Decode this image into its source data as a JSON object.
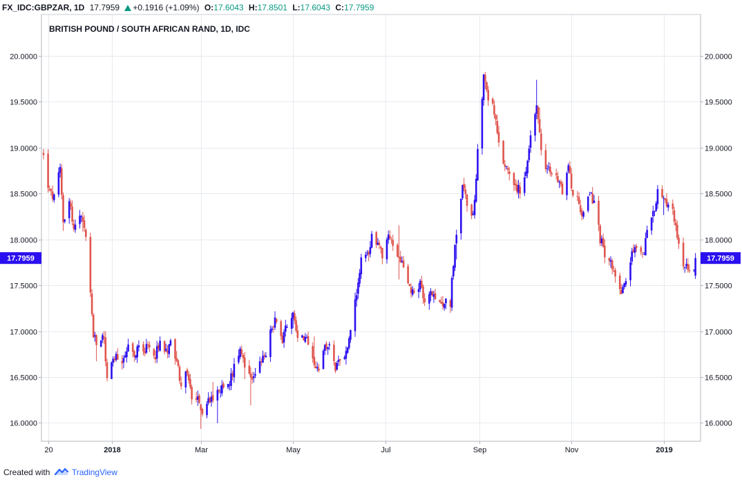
{
  "header": {
    "symbol": "FX_IDC:GBPZAR, 1D",
    "last": "17.7959",
    "change": "+0.1916 (+1.09%)",
    "open_label": "O:",
    "open": "17.6043",
    "high_label": "H:",
    "high": "17.8501",
    "low_label": "L:",
    "low": "17.6043",
    "close_label": "C:",
    "close": "17.7959",
    "change_direction": "up"
  },
  "footer": {
    "created_with": "Created with",
    "brand": "TradingView"
  },
  "chart_data": {
    "type": "candlestick",
    "title": "BRITISH POUND / SOUTH AFRICAN RAND, 1D, IDC",
    "ylim": [
      15.8,
      20.45
    ],
    "y_ticks": [
      "20.0000",
      "19.5000",
      "19.0000",
      "18.5000",
      "18.0000",
      "17.5000",
      "17.0000",
      "16.5000",
      "16.0000"
    ],
    "y_tick_values": [
      20.0,
      19.5,
      19.0,
      18.5,
      18.0,
      17.5,
      17.0,
      16.5,
      16.0
    ],
    "x_ticks": [
      "20",
      "2018",
      "Mar",
      "May",
      "Jul",
      "Sep",
      "Nov",
      "2019"
    ],
    "x_tick_dates": [
      "2017-11-20",
      "2018-01-01",
      "2018-03-01",
      "2018-05-01",
      "2018-07-01",
      "2018-09-01",
      "2018-11-01",
      "2019-01-01"
    ],
    "x_range": [
      "2017-11-17",
      "2019-01-24"
    ],
    "bold_ticks": [
      "2018",
      "2019"
    ],
    "last_price": "17.7959",
    "last_price_value": 17.7959,
    "up_color": "#2b10f0",
    "down_color": "#e0554e",
    "grid": true,
    "anchors": [
      [
        "2017-11-17",
        18.9
      ],
      [
        "2017-11-21",
        18.5
      ],
      [
        "2017-11-24",
        18.45
      ],
      [
        "2017-11-28",
        18.75
      ],
      [
        "2017-11-30",
        18.2
      ],
      [
        "2017-12-04",
        18.45
      ],
      [
        "2017-12-07",
        18.1
      ],
      [
        "2017-12-11",
        18.25
      ],
      [
        "2017-12-15",
        18.05
      ],
      [
        "2017-12-18",
        17.4
      ],
      [
        "2017-12-20",
        16.95
      ],
      [
        "2017-12-22",
        16.85
      ],
      [
        "2017-12-27",
        16.95
      ],
      [
        "2017-12-29",
        16.45
      ],
      [
        "2018-01-02",
        16.7
      ],
      [
        "2018-01-05",
        16.7
      ],
      [
        "2018-01-09",
        16.65
      ],
      [
        "2018-01-12",
        16.8
      ],
      [
        "2018-01-16",
        16.7
      ],
      [
        "2018-01-19",
        16.9
      ],
      [
        "2018-01-23",
        16.8
      ],
      [
        "2018-01-26",
        16.8
      ],
      [
        "2018-01-30",
        16.75
      ],
      [
        "2018-02-02",
        16.9
      ],
      [
        "2018-02-06",
        16.75
      ],
      [
        "2018-02-09",
        16.95
      ],
      [
        "2018-02-13",
        16.65
      ],
      [
        "2018-02-16",
        16.45
      ],
      [
        "2018-02-20",
        16.55
      ],
      [
        "2018-02-23",
        16.3
      ],
      [
        "2018-02-27",
        16.25
      ],
      [
        "2018-03-02",
        16.12
      ],
      [
        "2018-03-06",
        16.25
      ],
      [
        "2018-03-09",
        16.3
      ],
      [
        "2018-03-13",
        16.4
      ],
      [
        "2018-03-16",
        16.35
      ],
      [
        "2018-03-20",
        16.45
      ],
      [
        "2018-03-23",
        16.6
      ],
      [
        "2018-03-27",
        16.85
      ],
      [
        "2018-03-30",
        16.65
      ],
      [
        "2018-04-03",
        16.5
      ],
      [
        "2018-04-06",
        16.55
      ],
      [
        "2018-04-10",
        16.65
      ],
      [
        "2018-04-13",
        16.75
      ],
      [
        "2018-04-17",
        17.05
      ],
      [
        "2018-04-20",
        17.15
      ],
      [
        "2018-04-24",
        16.9
      ],
      [
        "2018-04-27",
        17.1
      ],
      [
        "2018-05-01",
        17.2
      ],
      [
        "2018-05-04",
        16.95
      ],
      [
        "2018-05-08",
        16.95
      ],
      [
        "2018-05-11",
        16.85
      ],
      [
        "2018-05-15",
        16.6
      ],
      [
        "2018-05-18",
        16.6
      ],
      [
        "2018-05-22",
        16.8
      ],
      [
        "2018-05-25",
        16.85
      ],
      [
        "2018-05-29",
        16.6
      ],
      [
        "2018-06-01",
        16.65
      ],
      [
        "2018-06-05",
        16.75
      ],
      [
        "2018-06-08",
        17.0
      ],
      [
        "2018-06-12",
        17.4
      ],
      [
        "2018-06-15",
        17.75
      ],
      [
        "2018-06-19",
        17.8
      ],
      [
        "2018-06-22",
        18.05
      ],
      [
        "2018-06-26",
        17.95
      ],
      [
        "2018-06-29",
        17.85
      ],
      [
        "2018-07-03",
        18.05
      ],
      [
        "2018-07-06",
        17.95
      ],
      [
        "2018-07-10",
        17.75
      ],
      [
        "2018-07-13",
        17.7
      ],
      [
        "2018-07-17",
        17.5
      ],
      [
        "2018-07-20",
        17.4
      ],
      [
        "2018-07-24",
        17.5
      ],
      [
        "2018-07-27",
        17.3
      ],
      [
        "2018-07-31",
        17.45
      ],
      [
        "2018-08-03",
        17.3
      ],
      [
        "2018-08-07",
        17.25
      ],
      [
        "2018-08-10",
        17.4
      ],
      [
        "2018-08-13",
        17.25
      ],
      [
        "2018-08-14",
        17.55
      ],
      [
        "2018-08-17",
        18.1
      ],
      [
        "2018-08-21",
        18.6
      ],
      [
        "2018-08-24",
        18.4
      ],
      [
        "2018-08-28",
        18.25
      ],
      [
        "2018-08-31",
        18.95
      ],
      [
        "2018-09-04",
        19.8
      ],
      [
        "2018-09-07",
        19.55
      ],
      [
        "2018-09-11",
        19.4
      ],
      [
        "2018-09-14",
        19.0
      ],
      [
        "2018-09-18",
        18.8
      ],
      [
        "2018-09-21",
        18.75
      ],
      [
        "2018-09-25",
        18.6
      ],
      [
        "2018-09-28",
        18.5
      ],
      [
        "2018-10-02",
        18.7
      ],
      [
        "2018-10-05",
        19.1
      ],
      [
        "2018-10-09",
        19.4
      ],
      [
        "2018-10-12",
        19.0
      ],
      [
        "2018-10-16",
        18.75
      ],
      [
        "2018-10-19",
        18.7
      ],
      [
        "2018-10-23",
        18.65
      ],
      [
        "2018-10-26",
        18.55
      ],
      [
        "2018-10-30",
        18.8
      ],
      [
        "2018-11-02",
        18.5
      ],
      [
        "2018-11-06",
        18.4
      ],
      [
        "2018-11-09",
        18.25
      ],
      [
        "2018-11-13",
        18.5
      ],
      [
        "2018-11-16",
        18.4
      ],
      [
        "2018-11-20",
        18.0
      ],
      [
        "2018-11-23",
        17.85
      ],
      [
        "2018-11-27",
        17.75
      ],
      [
        "2018-11-30",
        17.65
      ],
      [
        "2018-12-04",
        17.45
      ],
      [
        "2018-12-07",
        17.5
      ],
      [
        "2018-12-11",
        17.85
      ],
      [
        "2018-12-14",
        17.95
      ],
      [
        "2018-12-18",
        17.8
      ],
      [
        "2018-12-21",
        18.05
      ],
      [
        "2018-12-25",
        18.3
      ],
      [
        "2018-12-28",
        18.5
      ],
      [
        "2019-01-01",
        18.45
      ],
      [
        "2019-01-04",
        18.35
      ],
      [
        "2019-01-08",
        18.25
      ],
      [
        "2019-01-11",
        17.95
      ],
      [
        "2019-01-14",
        17.75
      ],
      [
        "2019-01-17",
        17.7
      ],
      [
        "2019-01-21",
        17.62
      ],
      [
        "2019-01-22",
        17.7959
      ]
    ]
  }
}
